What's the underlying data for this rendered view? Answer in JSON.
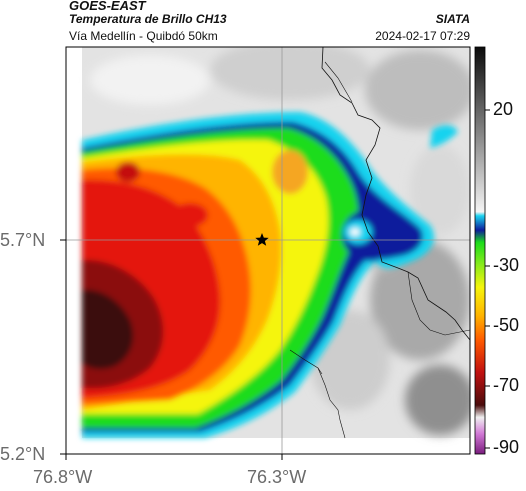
{
  "header": {
    "satellite": "GOES-EAST",
    "product": "Temperatura de Brillo CH13",
    "route": "Vía Medellín - Quibdó 50km",
    "agency": "SIATA",
    "datetime": "2024-02-17 07:29"
  },
  "map": {
    "lat_ticks": [
      "5.7°N",
      "5.2°N"
    ],
    "lon_ticks": [
      "76.8°W",
      "76.3°W"
    ],
    "marker": "star-marker"
  },
  "colorbar": {
    "labels": [
      "20",
      "-30",
      "-50",
      "-70",
      "-90"
    ],
    "colors": {
      "gray_dark": "#222222",
      "gray_light": "#e8e8e8",
      "cyan": "#19d3ef",
      "blue": "#0e1c9c",
      "green": "#1bdc1b",
      "yellow": "#f5f50c",
      "orange": "#ff8a00",
      "red": "#e4190d",
      "dark_red": "#5a0f10",
      "magenta": "#b44dbb"
    }
  }
}
